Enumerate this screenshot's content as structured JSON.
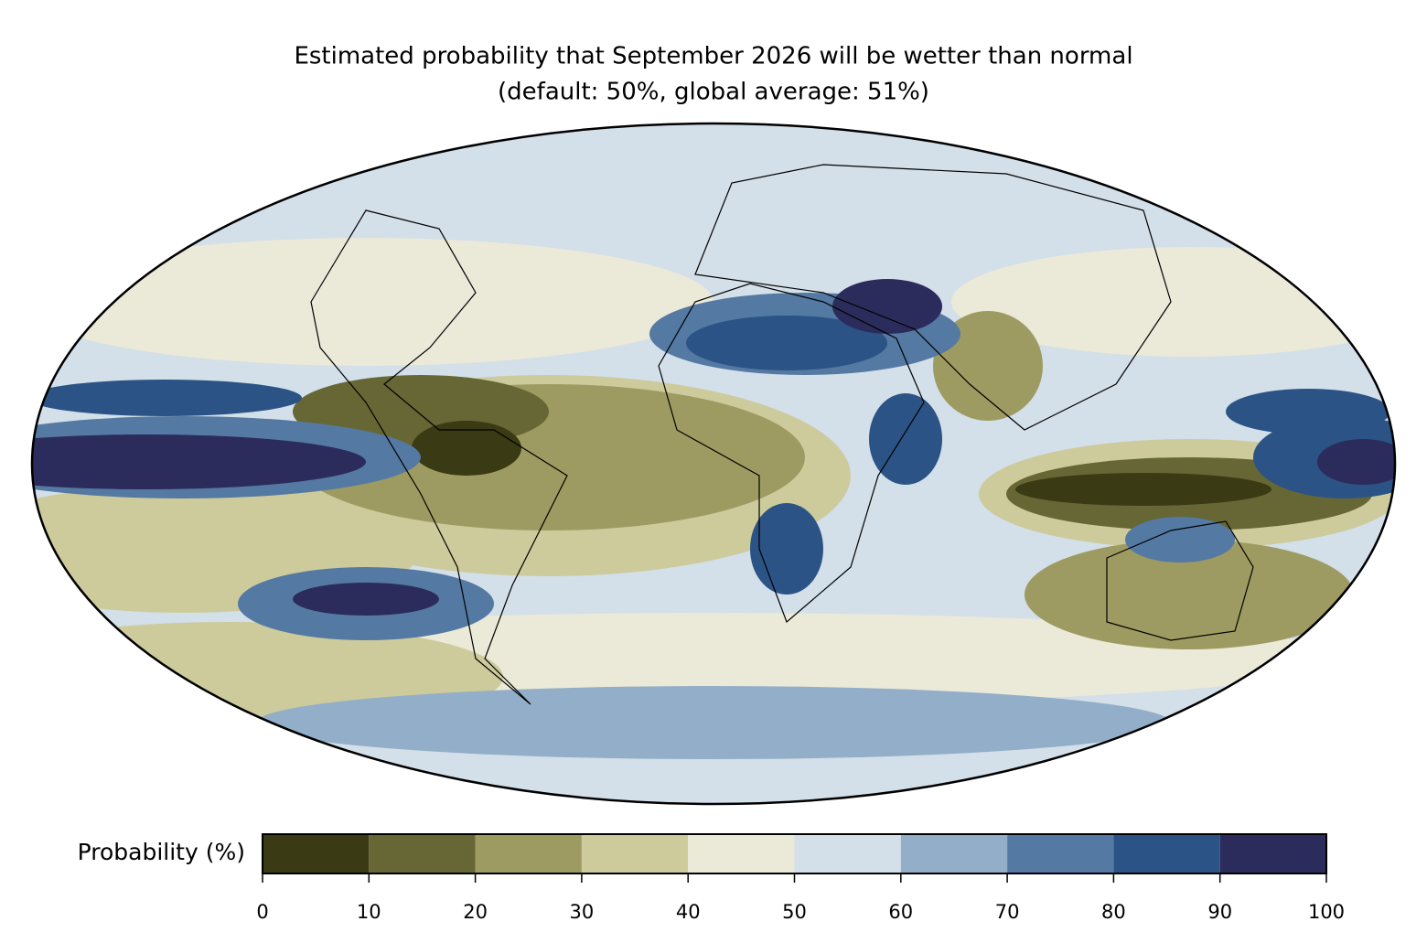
{
  "header": {
    "title": "Estimated probability that September 2026 will be wetter than normal",
    "subtitle": "(default: 50%, global average: 51%)"
  },
  "colorbar": {
    "label": "Probability (%)",
    "ticks": [
      0,
      10,
      20,
      30,
      40,
      50,
      60,
      70,
      80,
      90,
      100
    ],
    "colors": [
      "#3a3a14",
      "#676635",
      "#9e9b62",
      "#cdcb9c",
      "#ebe9d8",
      "#d3dfe9",
      "#93aec8",
      "#5479a2",
      "#2c5385",
      "#2c2c5c"
    ]
  }
}
